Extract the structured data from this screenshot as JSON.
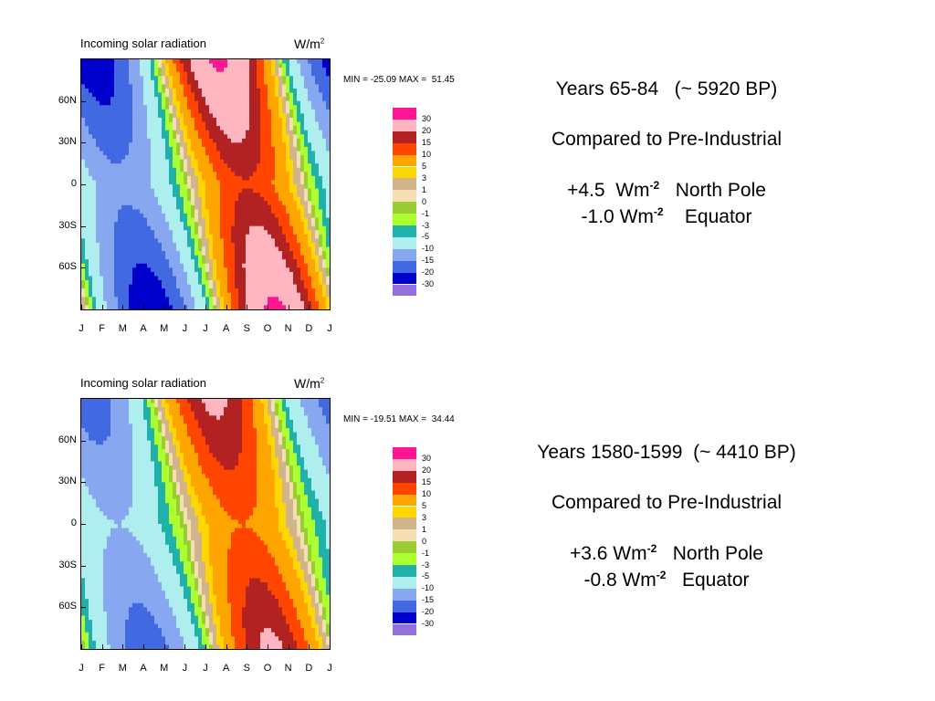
{
  "chart_data": [
    {
      "type": "heatmap",
      "title": "Incoming solar radiation",
      "units": "W/m",
      "units_superscript": "2",
      "minmax": "MIN = -25.09 MAX =  51.45",
      "x_ticks": [
        "J",
        "F",
        "M",
        "A",
        "M",
        "J",
        "J",
        "A",
        "S",
        "O",
        "N",
        "D",
        "J"
      ],
      "y_ticks": [
        {
          "label": "60N",
          "lat": 60
        },
        {
          "label": "30N",
          "lat": 30
        },
        {
          "label": "0",
          "lat": 0
        },
        {
          "label": "30S",
          "lat": -30
        },
        {
          "label": "60S",
          "lat": -60
        }
      ],
      "ylim": [
        -90,
        90
      ],
      "xlim": [
        0,
        12
      ],
      "contour_levels": [
        -30,
        -20,
        -15,
        -10,
        -5,
        -3,
        -1,
        0,
        1,
        3,
        5,
        10,
        15,
        20,
        30
      ],
      "colorbar_labels": [
        "30",
        "20",
        "15",
        "10",
        "5",
        "3",
        "1",
        "0",
        "-1",
        "-3",
        "-5",
        "-10",
        "-15",
        "-20",
        "-30"
      ],
      "colors": [
        "#ff1493",
        "#ffb6c1",
        "#b22222",
        "#ff4500",
        "#ffa500",
        "#ffd700",
        "#d2b48c",
        "#f5deb3",
        "#9acd32",
        "#adff2f",
        "#20b2aa",
        "#afeeee",
        "#87a8f0",
        "#4169e1",
        "#0000cd",
        "#9370db"
      ],
      "field": {
        "equator_amp": -1.0,
        "north_pole_amp": 4.5,
        "peak_amp": 32,
        "negative_amp": -24,
        "phase_north_month": 6.6,
        "phase_south_month": 9.4
      }
    },
    {
      "type": "heatmap",
      "title": "Incoming solar radiation",
      "units": "W/m",
      "units_superscript": "2",
      "minmax": "MIN = -19.51 MAX =  34.44",
      "x_ticks": [
        "J",
        "F",
        "M",
        "A",
        "M",
        "J",
        "J",
        "A",
        "S",
        "O",
        "N",
        "D",
        "J"
      ],
      "y_ticks": [
        {
          "label": "60N",
          "lat": 60
        },
        {
          "label": "30N",
          "lat": 30
        },
        {
          "label": "0",
          "lat": 0
        },
        {
          "label": "30S",
          "lat": -30
        },
        {
          "label": "60S",
          "lat": -60
        }
      ],
      "ylim": [
        -90,
        90
      ],
      "xlim": [
        0,
        12
      ],
      "contour_levels": [
        -30,
        -20,
        -15,
        -10,
        -5,
        -3,
        -1,
        0,
        1,
        3,
        5,
        10,
        15,
        20,
        30
      ],
      "colorbar_labels": [
        "30",
        "20",
        "15",
        "10",
        "5",
        "3",
        "1",
        "0",
        "-1",
        "-3",
        "-5",
        "-10",
        "-15",
        "-20",
        "-30"
      ],
      "colors": [
        "#ff1493",
        "#ffb6c1",
        "#b22222",
        "#ff4500",
        "#ffa500",
        "#ffd700",
        "#d2b48c",
        "#f5deb3",
        "#9acd32",
        "#adff2f",
        "#20b2aa",
        "#afeeee",
        "#87a8f0",
        "#4169e1",
        "#0000cd",
        "#9370db"
      ],
      "field": {
        "equator_amp": -0.8,
        "north_pole_amp": 3.6,
        "peak_amp": 22,
        "negative_amp": -18,
        "phase_north_month": 6.4,
        "phase_south_month": 9.2
      }
    }
  ],
  "annotations": [
    {
      "period": "Years 65-84   (~ 5920 BP)",
      "compare": "Compared to Pre-Industrial",
      "np_value": "+4.5  Wm",
      "np_sup": "-2",
      "np_label": "   North Pole",
      "eq_value": "-1.0 Wm",
      "eq_sup": "-2",
      "eq_label": "    Equator"
    },
    {
      "period": "Years 1580-1599  (~ 4410 BP)",
      "compare": "Compared to Pre-Industrial",
      "np_value": "+3.6 Wm",
      "np_sup": "-2",
      "np_label": "   North Pole",
      "eq_value": "-0.8 Wm",
      "eq_sup": "-2",
      "eq_label": "   Equator"
    }
  ]
}
